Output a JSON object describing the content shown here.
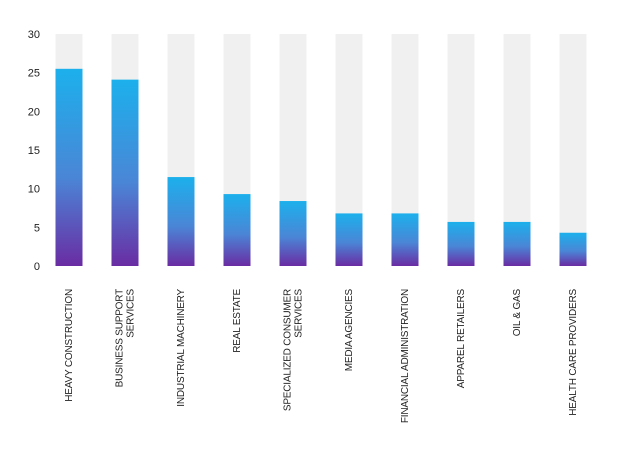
{
  "chart_data": {
    "type": "bar",
    "categories": [
      "HEAVY CONSTRUCTION",
      "BUSINESS SUPPORT SERVICES",
      "INDUSTRIAL MACHINERY",
      "REAL ESTATE",
      "SPECIALIZED CONSUMER SERVICES",
      "MEDIA AGENCIES",
      "FINANCIAL ADMINISTRATION",
      "APPAREL RETAILERS",
      "OIL & GAS",
      "HEALTH CARE PROVIDERS"
    ],
    "category_lines": [
      [
        "HEAVY CONSTRUCTION"
      ],
      [
        "BUSINESS SUPPORT",
        "SERVICES"
      ],
      [
        "INDUSTRIAL MACHINERY"
      ],
      [
        "REAL ESTATE"
      ],
      [
        "SPECIALIZED CONSUMER",
        "SERVICES"
      ],
      [
        "MEDIA AGENCIES"
      ],
      [
        "FINANCIAL ADMINISTRATION"
      ],
      [
        "APPAREL RETAILERS"
      ],
      [
        "OIL & GAS"
      ],
      [
        "HEALTH CARE PROVIDERS"
      ]
    ],
    "values": [
      25.5,
      24.1,
      11.5,
      9.3,
      8.4,
      6.8,
      6.8,
      5.7,
      5.7,
      4.3
    ],
    "ylim": [
      0,
      30
    ],
    "yticks": [
      "0",
      "5",
      "10",
      "15",
      "20",
      "25",
      "30"
    ],
    "title": "",
    "xlabel": "",
    "ylabel": "",
    "grid": false,
    "legend": "none"
  },
  "colors": {
    "bar_top": "#1cb0ec",
    "bar_bottom": "#6a2ca3",
    "track": "#f0f0f0"
  }
}
